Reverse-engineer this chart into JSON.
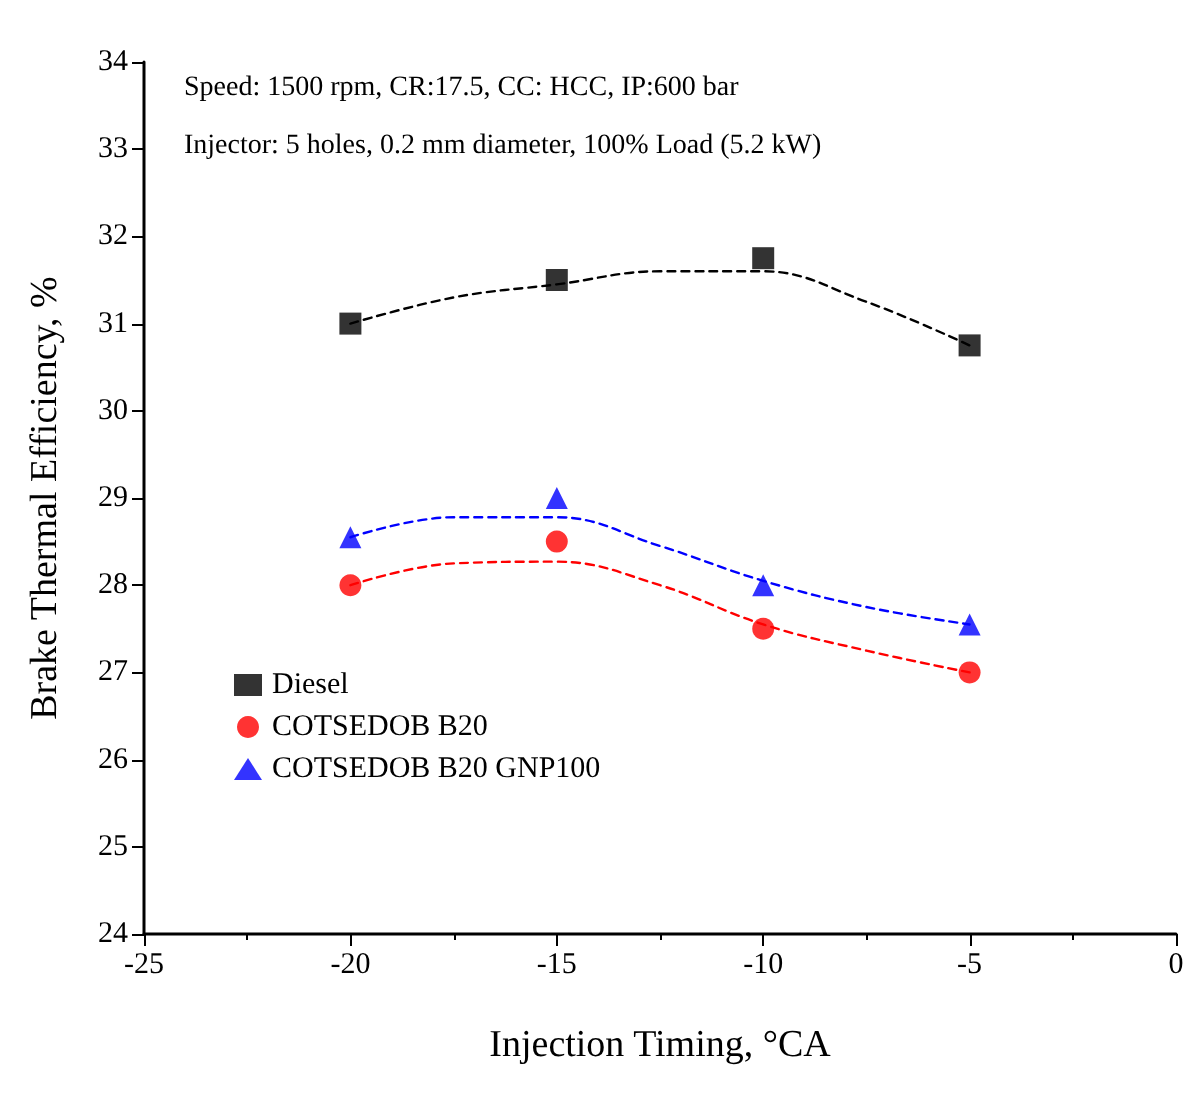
{
  "chart_data": {
    "type": "scatter",
    "xlabel": "Injection Timing, °CA",
    "ylabel": "Brake Thermal Efficiency, %",
    "annotations": [
      "Speed: 1500 rpm, CR:17.5, CC: HCC, IP:600 bar",
      "Injector: 5 holes, 0.2 mm diameter, 100% Load (5.2 kW)"
    ],
    "x": [
      -20,
      -15,
      -10,
      -5
    ],
    "series": [
      {
        "name": "Diesel",
        "color": "#000000",
        "marker": "square",
        "values": [
          31.0,
          31.5,
          31.75,
          30.75
        ]
      },
      {
        "name": "COTSEDOB B20",
        "color": "#ff0000",
        "marker": "circle",
        "values": [
          28.0,
          28.5,
          27.5,
          27.0
        ]
      },
      {
        "name": "COTSEDOB B20 GNP100",
        "color": "#0000ff",
        "marker": "triangle",
        "values": [
          28.55,
          29.0,
          28.0,
          27.55
        ]
      },
      {
        "type": "line",
        "color": "#000000",
        "marker": "none",
        "line_style": "dashed",
        "x": [
          -20,
          -17.5,
          -15,
          -12.5,
          -10,
          -7.5,
          -5
        ],
        "values": [
          31.0,
          31.3,
          31.45,
          31.6,
          31.6,
          31.25,
          30.75
        ]
      },
      {
        "type": "line",
        "color": "#ff0000",
        "marker": "none",
        "line_style": "dashed",
        "x": [
          -20,
          -17.5,
          -15,
          -12.5,
          -10,
          -7.5,
          -5
        ],
        "values": [
          28.0,
          28.25,
          28.27,
          28.0,
          27.55,
          27.25,
          27.0
        ]
      },
      {
        "type": "line",
        "color": "#0000ff",
        "marker": "none",
        "line_style": "dashed",
        "x": [
          -20,
          -17.5,
          -15,
          -12.5,
          -10,
          -7.5,
          -5
        ],
        "values": [
          28.55,
          28.78,
          28.78,
          28.45,
          28.05,
          27.75,
          27.55
        ]
      }
    ],
    "xlim": [
      -25,
      0
    ],
    "xticks": [
      -25,
      -20,
      -15,
      -10,
      -5,
      0
    ],
    "ylim": [
      24,
      34
    ],
    "yticks": [
      24,
      25,
      26,
      27,
      28,
      29,
      30,
      31,
      32,
      33,
      34
    ],
    "grid": false,
    "legend": "bottom left"
  }
}
